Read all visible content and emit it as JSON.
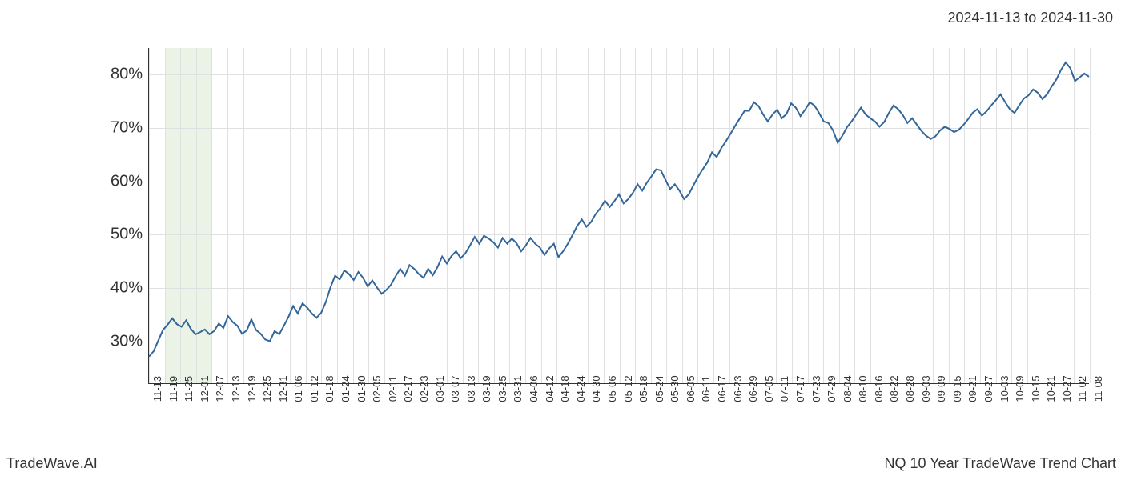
{
  "header": {
    "date_range": "2024-11-13 to 2024-11-30"
  },
  "footer": {
    "left": "TradeWave.AI",
    "right": "NQ 10 Year TradeWave Trend Chart"
  },
  "chart": {
    "type": "line",
    "line_color": "#336699",
    "line_width": 2,
    "background_color": "#ffffff",
    "grid_color": "#e0e0e0",
    "axis_color": "#333333",
    "shaded_region": {
      "color": "#d8e8d0",
      "opacity": 0.5,
      "x_start_idx": 1,
      "x_end_idx": 4
    },
    "y_axis": {
      "min": 22,
      "max": 85,
      "ticks": [
        30,
        40,
        50,
        60,
        70,
        80
      ],
      "tick_labels": [
        "30%",
        "40%",
        "50%",
        "60%",
        "70%",
        "80%"
      ],
      "label_fontsize": 20
    },
    "x_axis": {
      "labels": [
        "11-13",
        "11-19",
        "11-25",
        "12-01",
        "12-07",
        "12-13",
        "12-19",
        "12-25",
        "12-31",
        "01-06",
        "01-12",
        "01-18",
        "01-24",
        "01-30",
        "02-05",
        "02-11",
        "02-17",
        "02-23",
        "03-01",
        "03-07",
        "03-13",
        "03-19",
        "03-25",
        "03-31",
        "04-06",
        "04-12",
        "04-18",
        "04-24",
        "04-30",
        "05-06",
        "05-12",
        "05-18",
        "05-24",
        "05-30",
        "06-05",
        "06-11",
        "06-17",
        "06-23",
        "06-29",
        "07-05",
        "07-11",
        "07-17",
        "07-23",
        "07-29",
        "08-04",
        "08-10",
        "08-16",
        "08-22",
        "08-28",
        "09-03",
        "09-09",
        "09-15",
        "09-21",
        "09-27",
        "10-03",
        "10-09",
        "10-15",
        "10-21",
        "10-27",
        "11-02",
        "11-08"
      ],
      "label_fontsize": 13
    },
    "series": {
      "values": [
        27,
        28,
        30,
        32,
        33,
        34.2,
        33.1,
        32.6,
        33.8,
        32.2,
        31.2,
        31.6,
        32.1,
        31.2,
        31.8,
        33.2,
        32.4,
        34.6,
        33.5,
        32.8,
        31.3,
        31.9,
        34,
        32,
        31.3,
        30.2,
        29.9,
        31.8,
        31.2,
        32.8,
        34.5,
        36.5,
        35.1,
        37,
        36.2,
        35.1,
        34.3,
        35.2,
        37.2,
        40,
        42.2,
        41.5,
        43.2,
        42.5,
        41.4,
        42.9,
        41.8,
        40.2,
        41.3,
        40,
        38.8,
        39.5,
        40.5,
        42.1,
        43.5,
        42.2,
        44.2,
        43.5,
        42.5,
        41.8,
        43.5,
        42.3,
        43.8,
        45.8,
        44.5,
        45.9,
        46.8,
        45.5,
        46.4,
        47.9,
        49.5,
        48.2,
        49.7,
        49.2,
        48.5,
        47.5,
        49.3,
        48.2,
        49.2,
        48.3,
        46.8,
        47.9,
        49.3,
        48.2,
        47.5,
        46.1,
        47.3,
        48.2,
        45.7,
        46.8,
        48.2,
        49.8,
        51.5,
        52.8,
        51.4,
        52.3,
        53.8,
        54.9,
        56.3,
        55.1,
        56.2,
        57.5,
        55.8,
        56.6,
        57.8,
        59.4,
        58.2,
        59.7,
        60.9,
        62.2,
        62,
        60.2,
        58.5,
        59.4,
        58.2,
        56.6,
        57.5,
        59.2,
        60.8,
        62.2,
        63.5,
        65.4,
        64.5,
        66.2,
        67.5,
        68.9,
        70.4,
        71.8,
        73.2,
        73.2,
        74.8,
        74.1,
        72.5,
        71.2,
        72.5,
        73.4,
        71.8,
        72.6,
        74.6,
        73.8,
        72.2,
        73.4,
        74.8,
        74.2,
        72.8,
        71.2,
        70.9,
        69.5,
        67.2,
        68.5,
        70.1,
        71.2,
        72.5,
        73.8,
        72.5,
        71.8,
        71.2,
        70.2,
        71.1,
        72.8,
        74.2,
        73.5,
        72.4,
        70.9,
        71.8,
        70.6,
        69.4,
        68.5,
        67.9,
        68.4,
        69.5,
        70.2,
        69.8,
        69.2,
        69.6,
        70.5,
        71.6,
        72.8,
        73.5,
        72.3,
        73.1,
        74.2,
        75.2,
        76.3,
        74.8,
        73.5,
        72.8,
        74.2,
        75.5,
        76.1,
        77.2,
        76.6,
        75.4,
        76.3,
        77.8,
        79.1,
        80.9,
        82.3,
        81.2,
        78.8,
        79.5,
        80.2,
        79.6
      ]
    }
  }
}
